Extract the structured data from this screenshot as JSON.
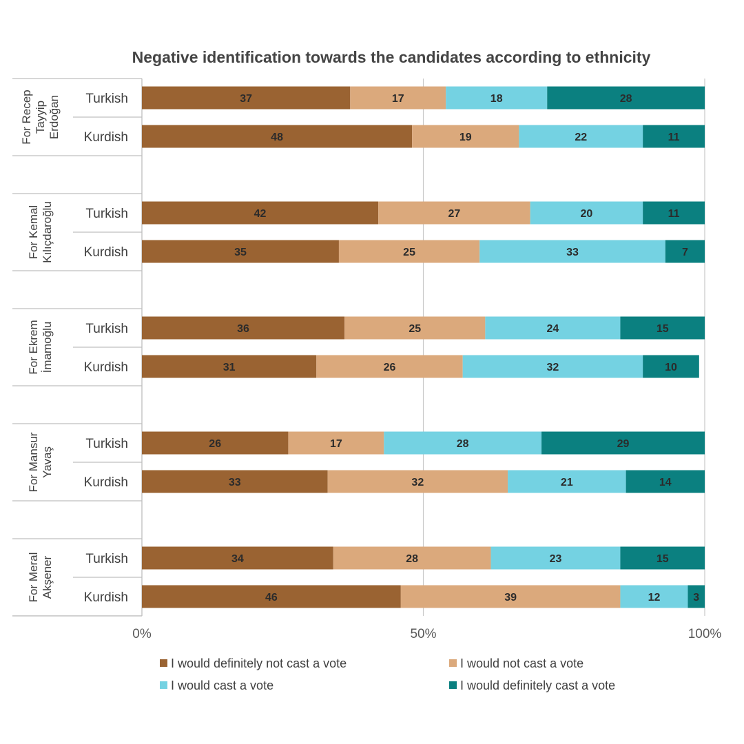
{
  "chart_data": {
    "type": "bar",
    "orientation": "horizontal",
    "stacked": "percent",
    "title": "Negative identification towards the candidates according to ethnicity",
    "xlabel": "",
    "ylabel": "",
    "xlim": [
      0,
      100
    ],
    "x_ticks": [
      "0%",
      "50%",
      "100%"
    ],
    "grid": "vertical major gridlines",
    "legend_position": "bottom",
    "groups": [
      {
        "label": "For Recep Tayyip Erdoğan",
        "label_lines": [
          "For Recep",
          "Tayyip",
          "Erdoğan"
        ],
        "categories": [
          "Turkish",
          "Kurdish"
        ]
      },
      {
        "label": "For Kemal Kılıçdaroğlu",
        "label_lines": [
          "For Kemal",
          "Kılıçdaroğlu"
        ],
        "categories": [
          "Turkish",
          "Kurdish"
        ]
      },
      {
        "label": "For Ekrem İmamoğlu",
        "label_lines": [
          "For Ekrem",
          "İmamoğlu"
        ],
        "categories": [
          "Turkish",
          "Kurdish"
        ]
      },
      {
        "label": "For Mansur Yavaş",
        "label_lines": [
          "For Mansur",
          "Yavaş"
        ],
        "categories": [
          "Turkish",
          "Kurdish"
        ]
      },
      {
        "label": "For Meral Akşener",
        "label_lines": [
          "For Meral",
          "Akşener"
        ],
        "categories": [
          "Turkish",
          "Kurdish"
        ]
      }
    ],
    "series": [
      {
        "name": "I would definitely not cast a vote",
        "color": "#9a6332",
        "values": [
          [
            37,
            48
          ],
          [
            42,
            35
          ],
          [
            36,
            31
          ],
          [
            26,
            33
          ],
          [
            34,
            46
          ]
        ]
      },
      {
        "name": "I would not cast a vote",
        "color": "#dba97c",
        "values": [
          [
            17,
            19
          ],
          [
            27,
            25
          ],
          [
            25,
            26
          ],
          [
            17,
            32
          ],
          [
            28,
            39
          ]
        ]
      },
      {
        "name": "I would cast a vote",
        "color": "#74d2e2",
        "values": [
          [
            18,
            22
          ],
          [
            20,
            33
          ],
          [
            24,
            32
          ],
          [
            28,
            21
          ],
          [
            23,
            12
          ]
        ]
      },
      {
        "name": "I would definitely cast a vote",
        "color": "#0b8080",
        "values": [
          [
            28,
            11
          ],
          [
            11,
            7
          ],
          [
            15,
            10
          ],
          [
            29,
            14
          ],
          [
            15,
            3
          ]
        ]
      }
    ]
  }
}
